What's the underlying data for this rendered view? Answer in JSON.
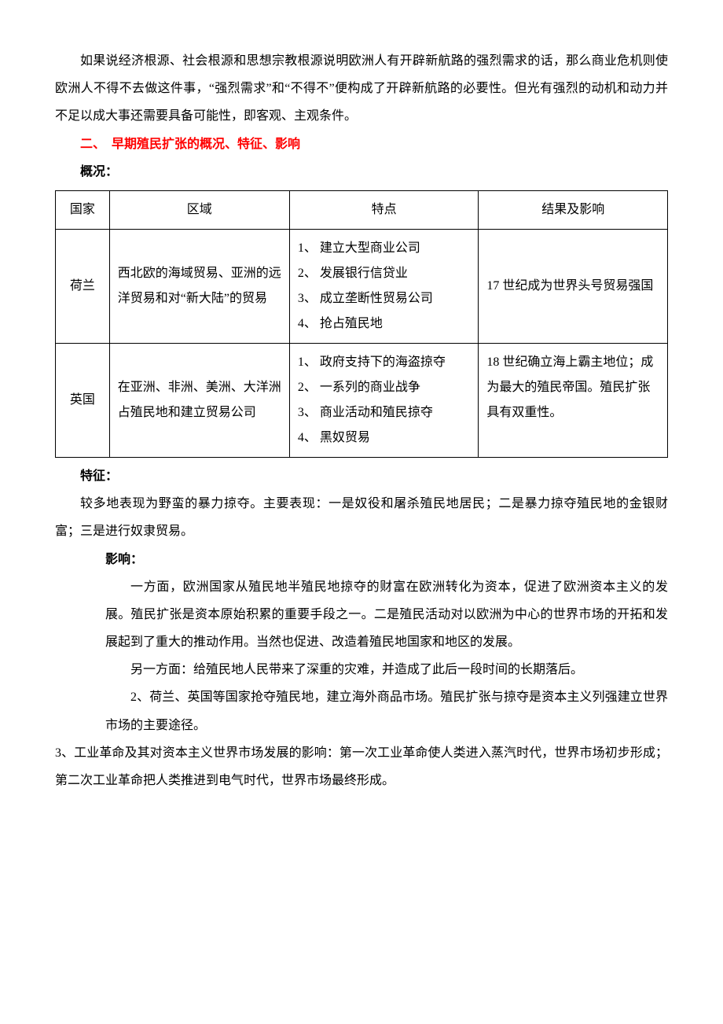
{
  "intro": "如果说经济根源、社会根源和思想宗教根源说明欧洲人有开辟新航路的强烈需求的话，那么商业危机则使欧洲人不得不去做这件事，“强烈需求”和“不得不”便构成了开辟新航路的必要性。但光有强烈的动机和动力并不足以成大事还需要具备可能性，即客观、主观条件。",
  "heading2": "二、　早期殖民扩张的概况、特征、影响",
  "overview_label": "概况：",
  "table": {
    "headers": [
      "国家",
      "区域",
      "特点",
      "结果及影响"
    ],
    "rows": [
      {
        "country": "荷兰",
        "region": "西北欧的海域贸易、亚洲的远洋贸易和对“新大陆”的贸易",
        "features": [
          "1、 建立大型商业公司",
          "2、 发展银行信贷业",
          "3、 成立垄断性贸易公司",
          "4、 抢占殖民地"
        ],
        "result": "17 世纪成为世界头号贸易强国"
      },
      {
        "country": "英国",
        "region": "在亚洲、非洲、美洲、大洋洲占殖民地和建立贸易公司",
        "features": [
          "1、 政府支持下的海盗掠夺",
          "2、 一系列的商业战争",
          "3、 商业活动和殖民掠夺",
          "4、 黑奴贸易"
        ],
        "result": "18 世纪确立海上霸主地位；成为最大的殖民帝国。殖民扩张具有双重性。"
      }
    ]
  },
  "feature_label": "特征：",
  "feature_text": "较多地表现为野蛮的暴力掠夺。主要表现：一是奴役和屠杀殖民地居民；二是暴力掠夺殖民地的金银财富；三是进行奴隶贸易。",
  "impact_label": "影响：",
  "impact_p1": "一方面，欧洲国家从殖民地半殖民地掠夺的财富在欧洲转化为资本，促进了欧洲资本主义的发展。殖民扩张是资本原始积累的重要手段之一。二是殖民活动对以欧洲为中心的世界市场的开拓和发展起到了重大的推动作用。当然也促进、改造着殖民地国家和地区的发展。",
  "impact_p2": "另一方面：给殖民地人民带来了深重的灾难，并造成了此后一段时间的长期落后。",
  "impact_p3": "2、荷兰、英国等国家抢夺殖民地，建立海外商品市场。殖民扩张与掠夺是资本主义列强建立世界市场的主要途径。",
  "point3": "3、工业革命及其对资本主义世界市场发展的影响：第一次工业革命使人类进入蒸汽时代，世界市场初步形成；第二次工业革命把人类推进到电气时代，世界市场最终形成。"
}
